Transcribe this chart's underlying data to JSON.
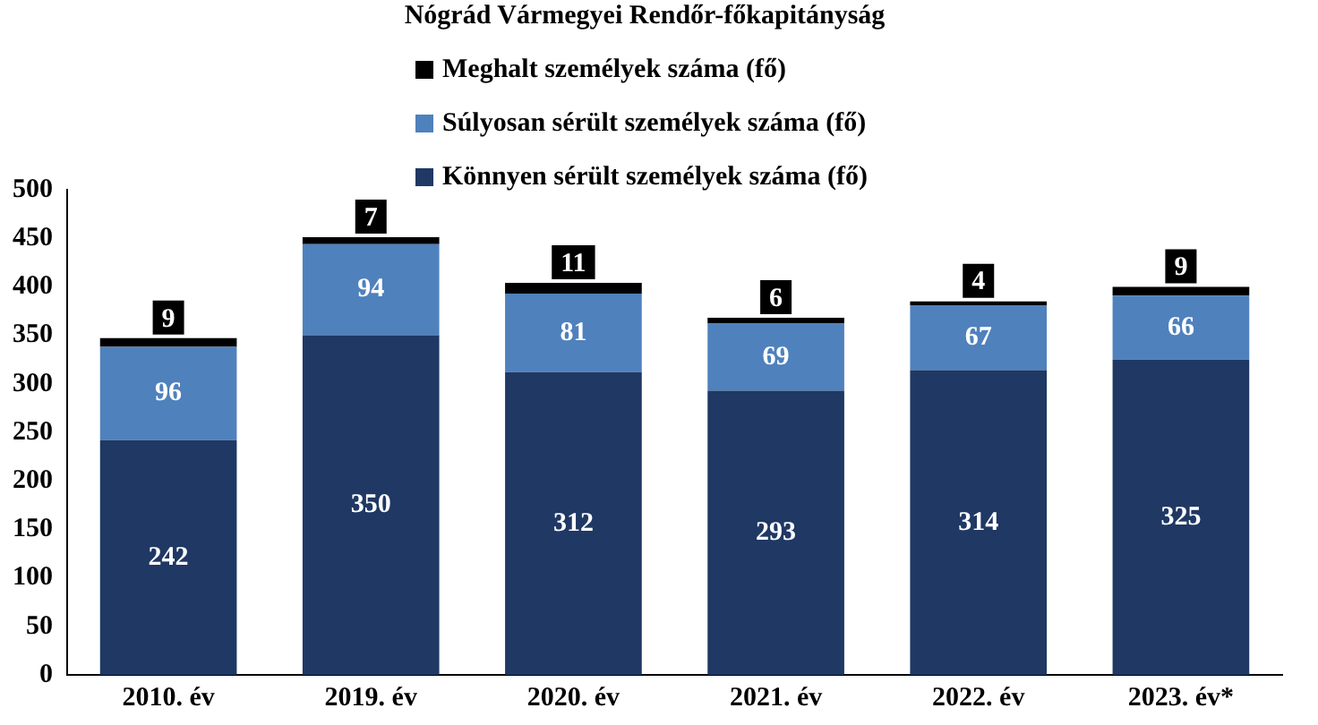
{
  "chart_data": {
    "type": "bar",
    "title": "Nógrád Vármegyei Rendőr-főkapitányság",
    "stacked": true,
    "categories": [
      "2010. év",
      "2019. év",
      "2020. év",
      "2021. év",
      "2022. év",
      "2023. év*"
    ],
    "series": [
      {
        "name": "Könnyen sérült személyek száma (fő)",
        "color": "#1f3864",
        "values": [
          242,
          350,
          312,
          293,
          314,
          325
        ]
      },
      {
        "name": "Súlyosan sérült személyek száma (fő)",
        "color": "#4f81bd",
        "values": [
          96,
          94,
          81,
          69,
          67,
          66
        ]
      },
      {
        "name": "Meghalt személyek száma (fő)",
        "color": "#000000",
        "values": [
          9,
          7,
          11,
          6,
          4,
          9
        ]
      }
    ],
    "ylim": [
      0,
      500
    ],
    "yticks": [
      0,
      50,
      100,
      150,
      200,
      250,
      300,
      350,
      400,
      450,
      500
    ],
    "grid": false,
    "legend": "top",
    "data_labels": true
  }
}
